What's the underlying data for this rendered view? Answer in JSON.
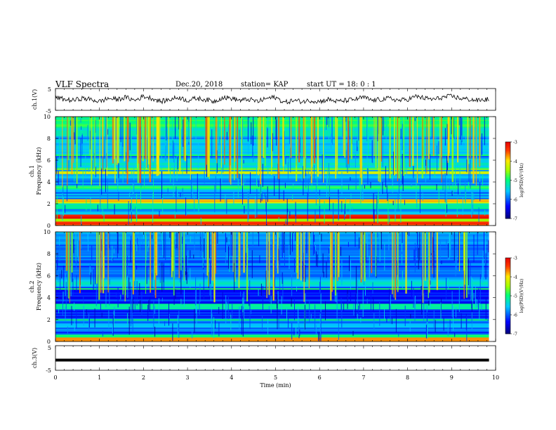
{
  "header": {
    "title": "VLF Spectra",
    "date": "Dec.20, 2018",
    "station": "station= KAP",
    "start": "start  UT =   18: 0  : 1"
  },
  "colors": {
    "colormap": [
      "#000080",
      "#0000ff",
      "#00ffff",
      "#00ff00",
      "#ffff00",
      "#ff0000",
      "#ffffff"
    ],
    "waveform": "#000000"
  },
  "chart_data": [
    {
      "type": "line",
      "name": "ch1-waveform",
      "ylabel": "ch.1(V)",
      "ylim": [
        -5,
        5
      ],
      "yticks": [
        "5",
        "-5"
      ],
      "xlim": [
        0,
        10
      ],
      "x": [
        0,
        0.2,
        0.4,
        0.6,
        0.8,
        1.0,
        1.2,
        1.4,
        1.6,
        1.8,
        2.0,
        2.2,
        2.4,
        2.6,
        2.8,
        3.0,
        3.2,
        3.4,
        3.6,
        3.8,
        4.0,
        4.2,
        4.4,
        4.6,
        4.8,
        5.0,
        5.2,
        5.4,
        5.6,
        5.8,
        6.0,
        6.2,
        6.4,
        6.6,
        6.8,
        7.0,
        7.2,
        7.4,
        7.6,
        7.8,
        8.0,
        8.2,
        8.4,
        8.6,
        8.8,
        9.0,
        9.2,
        9.4,
        9.6,
        9.8
      ],
      "y": [
        2,
        0,
        -1,
        1,
        0,
        -2,
        1,
        0,
        2,
        -1,
        3,
        1,
        -2,
        0,
        2,
        -1,
        1,
        0,
        -2,
        2,
        1,
        -1,
        0,
        -2,
        1,
        2,
        -3,
        -1,
        -2,
        -1,
        -2,
        0,
        -2,
        -1,
        0,
        2,
        -1,
        0,
        1,
        -1,
        0,
        3,
        1,
        0,
        2,
        3,
        1,
        0,
        -1,
        0
      ]
    },
    {
      "type": "heatmap",
      "name": "ch1-spectrogram",
      "ylabel_line1": "ch.1",
      "ylabel_line2": "Frequency  (kHz)",
      "xlim": [
        0,
        9.85
      ],
      "ylim": [
        0,
        10
      ],
      "yticks": [
        "0",
        "2",
        "4",
        "6",
        "8",
        "10"
      ],
      "colorbar": {
        "label": "log(PSD)(V²/Hz)",
        "range": [
          -7,
          -3
        ],
        "ticks": [
          "-3",
          "-4",
          "-5",
          "-6",
          "-7"
        ]
      },
      "freq_bands_khz": [
        {
          "f": 0.15,
          "level": -3.5,
          "width": 0.2
        },
        {
          "f": 0.5,
          "level": -4.6,
          "width": 0.2
        },
        {
          "f": 0.8,
          "level": -3.2,
          "width": 0.2
        },
        {
          "f": 1.3,
          "level": -6.0,
          "width": 0.3
        },
        {
          "f": 1.8,
          "level": -5.2,
          "width": 0.3
        },
        {
          "f": 2.1,
          "level": -4.2,
          "width": 0.1
        },
        {
          "f": 2.3,
          "level": -4.0,
          "width": 0.1
        },
        {
          "f": 2.8,
          "level": -6.5,
          "width": 0.3
        },
        {
          "f": 3.1,
          "level": -6.9,
          "width": 0.2
        },
        {
          "f": 3.5,
          "level": -5.0,
          "width": 0.2
        },
        {
          "f": 3.9,
          "level": -6.7,
          "width": 0.2
        },
        {
          "f": 4.3,
          "level": -6.0,
          "width": 0.3
        },
        {
          "f": 4.9,
          "level": -4.2,
          "width": 0.1
        },
        {
          "f": 5.2,
          "level": -4.5,
          "width": 0.1
        },
        {
          "f": 5.6,
          "level": -5.4,
          "width": 0.3
        },
        {
          "f": 6.5,
          "level": -5.0,
          "width": 0.1
        },
        {
          "f": 7.0,
          "level": -5.6,
          "width": 0.4
        },
        {
          "f": 7.8,
          "level": -5.8,
          "width": 0.6
        },
        {
          "f": 8.8,
          "level": -5.3,
          "width": 0.6
        },
        {
          "f": 9.6,
          "level": -5.0,
          "width": 0.6
        }
      ],
      "base_level": -5.8,
      "spike_times_min": [
        0.3,
        0.9,
        1.25,
        1.7,
        2.05,
        2.2,
        2.45,
        2.9,
        3.35,
        3.8,
        4.1,
        4.6,
        5.05,
        5.5,
        5.95,
        6.4,
        6.8,
        7.3,
        7.75,
        8.2,
        8.6,
        9.0,
        9.5
      ]
    },
    {
      "type": "heatmap",
      "name": "ch2-spectrogram",
      "ylabel_line1": "ch.2",
      "ylabel_line2": "Frequency  (kHz)",
      "xlim": [
        0,
        9.85
      ],
      "ylim": [
        0,
        10
      ],
      "yticks": [
        "0",
        "2",
        "4",
        "6",
        "8",
        "10"
      ],
      "colorbar": {
        "label": "log(PSD)(V²/Hz)",
        "range": [
          -7,
          -3
        ],
        "ticks": [
          "-3",
          "-4",
          "-5",
          "-6",
          "-7"
        ]
      },
      "freq_bands_khz": [
        {
          "f": 0.15,
          "level": -3.8,
          "width": 0.2
        },
        {
          "f": 0.5,
          "level": -5.0,
          "width": 0.2
        },
        {
          "f": 1.0,
          "level": -6.4,
          "width": 0.3
        },
        {
          "f": 1.5,
          "level": -5.5,
          "width": 0.2
        },
        {
          "f": 2.0,
          "level": -5.0,
          "width": 0.1
        },
        {
          "f": 2.6,
          "level": -6.3,
          "width": 0.3
        },
        {
          "f": 3.2,
          "level": -5.3,
          "width": 0.2
        },
        {
          "f": 3.8,
          "level": -6.9,
          "width": 0.3
        },
        {
          "f": 4.3,
          "level": -6.8,
          "width": 0.3
        },
        {
          "f": 4.8,
          "level": -4.8,
          "width": 0.1
        },
        {
          "f": 5.3,
          "level": -5.4,
          "width": 0.3
        },
        {
          "f": 6.0,
          "level": -6.0,
          "width": 0.4
        },
        {
          "f": 6.8,
          "level": -6.3,
          "width": 0.4
        },
        {
          "f": 7.6,
          "level": -6.4,
          "width": 0.6
        },
        {
          "f": 8.6,
          "level": -6.0,
          "width": 0.6
        },
        {
          "f": 9.5,
          "level": -5.7,
          "width": 0.6
        }
      ],
      "base_level": -6.1,
      "spike_times_min": [
        0.4,
        1.1,
        1.6,
        2.2,
        2.8,
        3.5,
        4.2,
        4.9,
        5.6,
        6.3,
        7.1,
        7.8,
        8.5,
        9.2
      ]
    },
    {
      "type": "line",
      "name": "ch3-waveform",
      "ylabel": "ch.3(V)",
      "ylim": [
        -5,
        5
      ],
      "yticks": [
        "5",
        "-5"
      ],
      "xlim": [
        0,
        10
      ],
      "x": [
        0,
        9.85
      ],
      "y": [
        0,
        0
      ],
      "xlabel": "Time  (min)",
      "xticks": [
        "0",
        "1",
        "2",
        "3",
        "4",
        "5",
        "6",
        "7",
        "8",
        "9",
        "10"
      ]
    }
  ]
}
